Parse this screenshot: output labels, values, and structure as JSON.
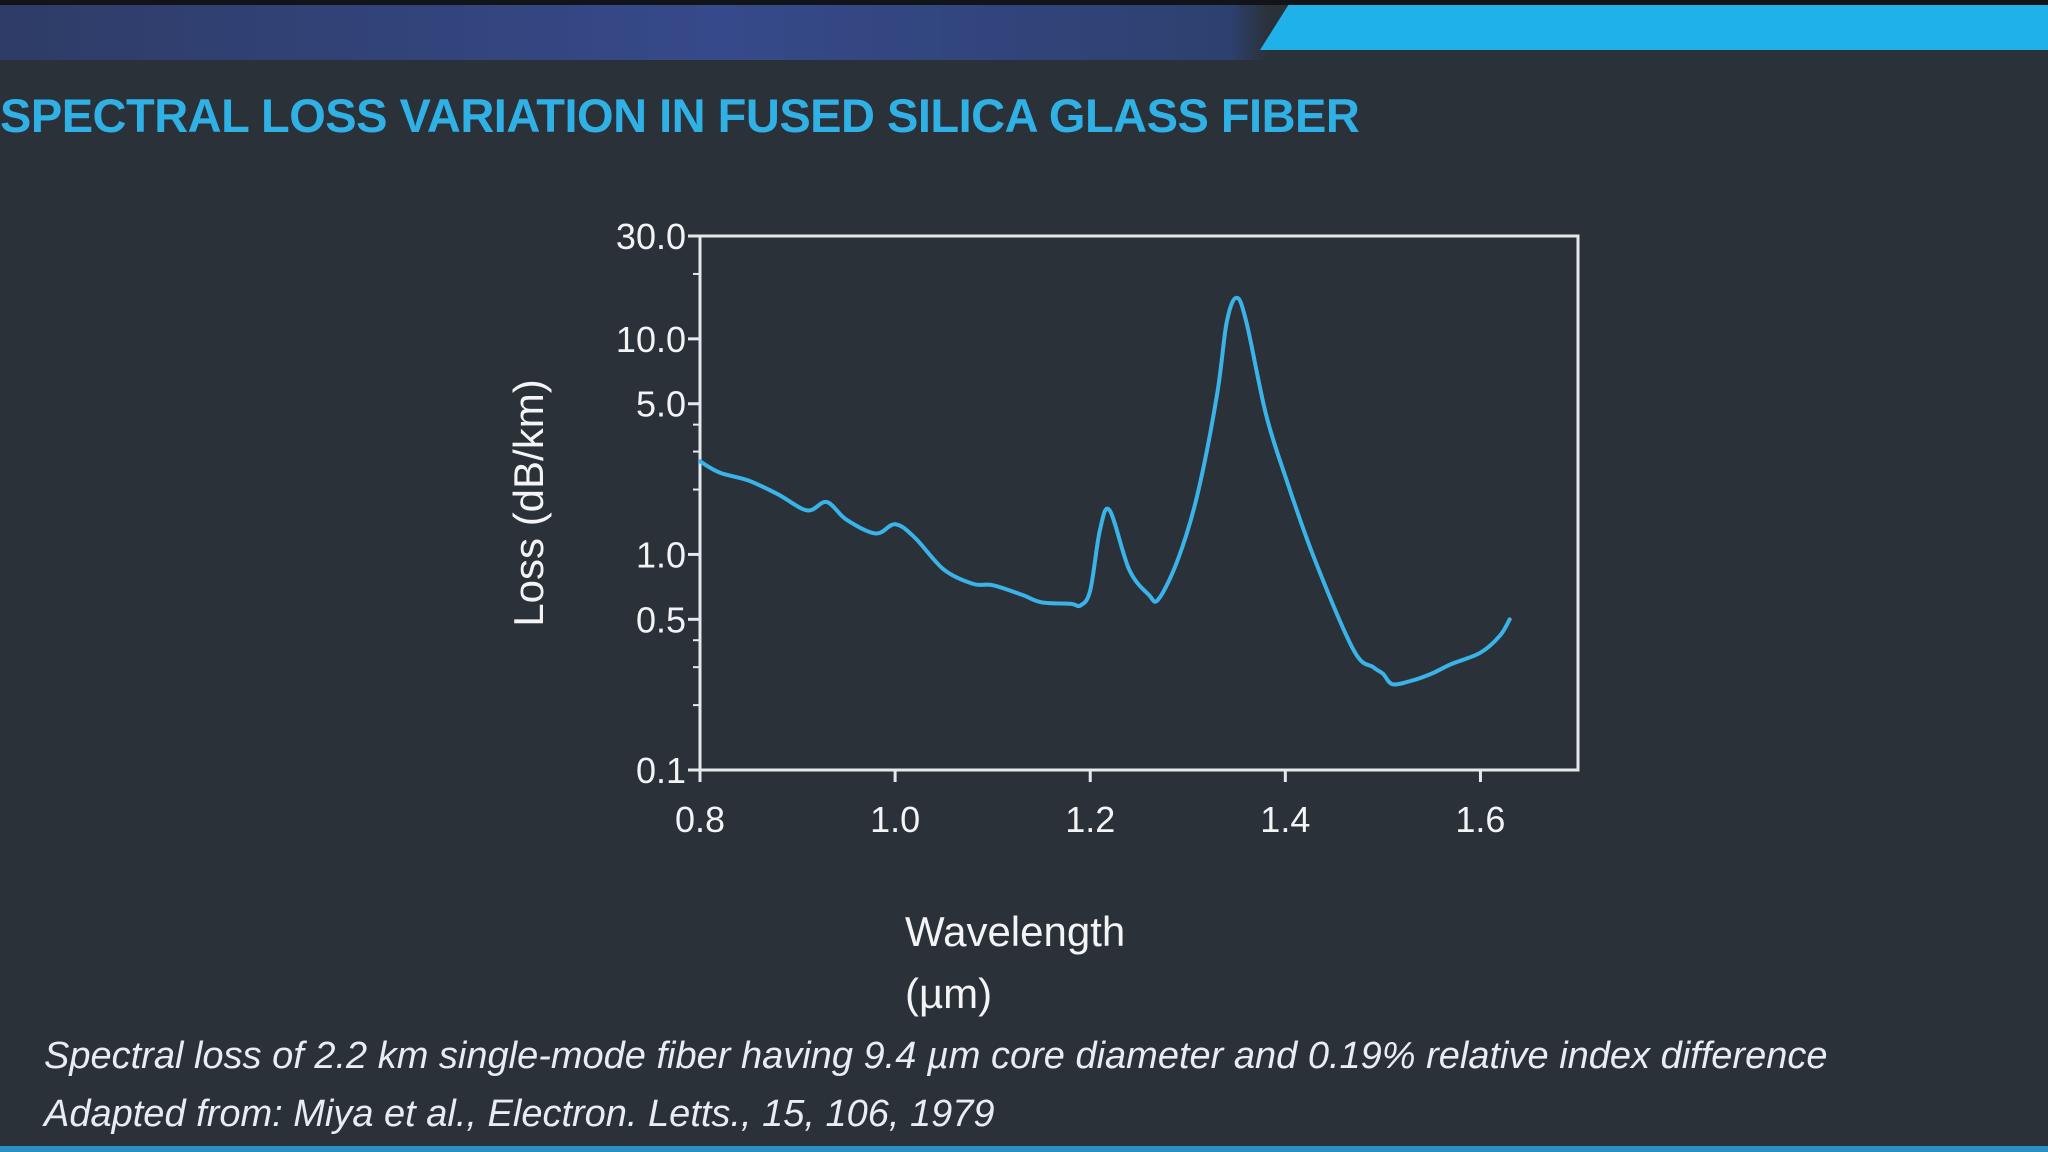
{
  "slide": {
    "title": "SPECTRAL LOSS VARIATION IN FUSED SILICA GLASS FIBER",
    "caption_line1": "Spectral loss of 2.2 km single-mode fiber having 9.4 µm core diameter and 0.19% relative index difference",
    "caption_line2": "Adapted from: Miya et al., Electron. Letts., 15, 106, 1979"
  },
  "colors": {
    "background": "#2b3138",
    "title": "#2fb1e6",
    "curve": "#3ab3e8",
    "axis": "#e6e9ec",
    "text": "#f2f4f6"
  },
  "chart_data": {
    "type": "line",
    "title": "",
    "xlabel": "Wavelength",
    "xlabel_unit": "(µm)",
    "ylabel": "Loss (dB/km)",
    "x_scale": "linear",
    "y_scale": "log",
    "xlim": [
      0.8,
      1.7
    ],
    "ylim": [
      0.1,
      30.0
    ],
    "x_ticks": [
      0.8,
      1.0,
      1.2,
      1.4,
      1.6
    ],
    "x_tick_labels": [
      "0.8",
      "1.0",
      "1.2",
      "1.4",
      "1.6"
    ],
    "y_ticks": [
      0.1,
      0.5,
      1.0,
      5.0,
      10.0,
      30.0
    ],
    "y_tick_labels": [
      "0.1",
      "0.5",
      "1.0",
      "5.0",
      "10.0",
      "30.0"
    ],
    "grid": false,
    "series": [
      {
        "x": [
          0.8,
          0.82,
          0.85,
          0.88,
          0.91,
          0.93,
          0.95,
          0.98,
          1.0,
          1.02,
          1.05,
          1.08,
          1.1,
          1.13,
          1.15,
          1.18,
          1.19,
          1.2,
          1.21,
          1.22,
          1.24,
          1.26,
          1.27,
          1.29,
          1.31,
          1.33,
          1.34,
          1.35,
          1.36,
          1.38,
          1.4,
          1.43,
          1.47,
          1.49,
          1.5,
          1.51,
          1.53,
          1.55,
          1.57,
          1.6,
          1.62,
          1.63
        ],
        "y": [
          2.7,
          2.4,
          2.2,
          1.9,
          1.6,
          1.75,
          1.45,
          1.25,
          1.38,
          1.2,
          0.85,
          0.73,
          0.72,
          0.65,
          0.6,
          0.59,
          0.58,
          0.68,
          1.3,
          1.6,
          0.85,
          0.65,
          0.62,
          0.95,
          1.9,
          5.5,
          12.0,
          15.5,
          12.0,
          4.5,
          2.3,
          0.95,
          0.36,
          0.3,
          0.28,
          0.25,
          0.26,
          0.28,
          0.31,
          0.35,
          0.42,
          0.5
        ]
      }
    ]
  }
}
